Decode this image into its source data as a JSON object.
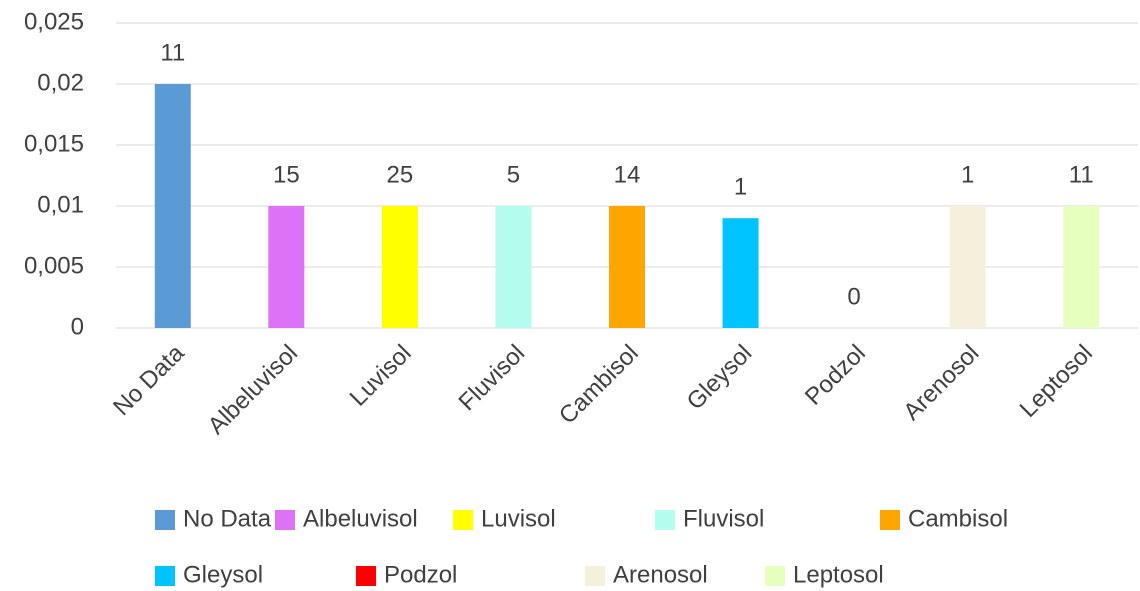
{
  "chart_data": {
    "type": "bar",
    "categories": [
      "No Data",
      "Albeluvisol",
      "Luvisol",
      "Fluvisol",
      "Cambisol",
      "Gleysol",
      "Podzol",
      "Arenosol",
      "Leptosol"
    ],
    "values": [
      0.02,
      0.01,
      0.01,
      0.01,
      0.01,
      0.009,
      0,
      0.01,
      0.01
    ],
    "data_labels": [
      11,
      15,
      25,
      5,
      14,
      1,
      0,
      1,
      11
    ],
    "colors": [
      "#5b9bd5",
      "#dd72f7",
      "#ffff00",
      "#b3fcee",
      "#ffa500",
      "#00c4ff",
      "#ff0000",
      "#f5f0dc",
      "#e6ffbf"
    ],
    "ylim": [
      0,
      0.025
    ],
    "yticks": [
      0,
      {
        "value": 0.005,
        "label": "0,005"
      },
      {
        "value": 0.01,
        "label": "0,01"
      },
      {
        "value": 0.015,
        "label": "0,015"
      },
      {
        "value": 0.02,
        "label": "0,02"
      },
      {
        "value": 0.025,
        "label": "0,025"
      }
    ],
    "grid": true,
    "legend": "bottom"
  }
}
